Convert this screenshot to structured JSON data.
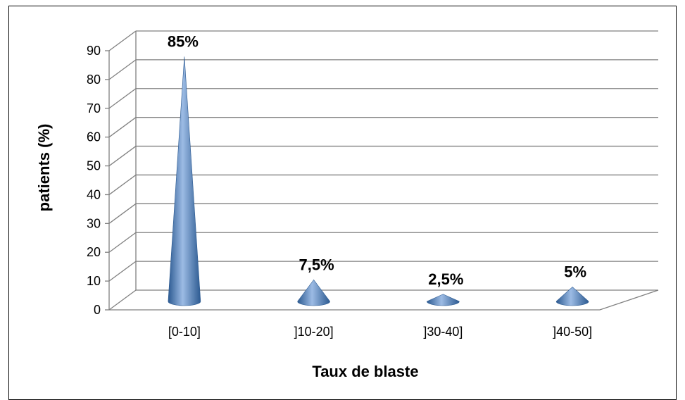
{
  "chart_data": {
    "type": "bar",
    "bar_shape": "cone-3d",
    "categories": [
      "[0-10]",
      "]10-20]",
      "]30-40]",
      "]40-50]"
    ],
    "values": [
      85,
      7.5,
      2.5,
      5
    ],
    "data_labels": [
      "85%",
      "7,5%",
      "2,5%",
      "5%"
    ],
    "xlabel": "Taux de blaste",
    "ylabel": "patients  (%)",
    "ylim": [
      0,
      90
    ],
    "yticks": [
      "0",
      "10",
      "20",
      "30",
      "40",
      "50",
      "60",
      "70",
      "80",
      "90"
    ],
    "grid": true,
    "legend": "none",
    "colors": {
      "bar": "#4f81bd",
      "bar_dark": "#2c5a91",
      "bar_light": "#9cbbe4",
      "grid": "#808080"
    }
  }
}
